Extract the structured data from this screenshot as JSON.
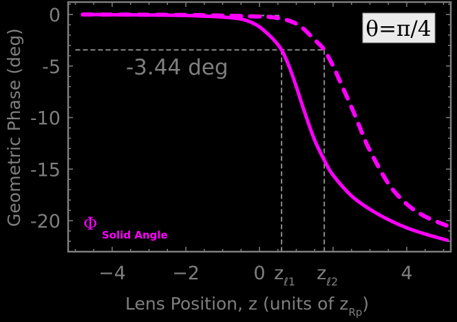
{
  "chart_data": {
    "type": "line",
    "title": "",
    "xlabel": "Lens Position, z (units of z_Rp)",
    "xlabel_main": "Lens Position, z (units of z",
    "xlabel_sub": "Rp",
    "xlabel_close": ")",
    "ylabel": "Geometric Phase (deg)",
    "xlim": [
      -5.2,
      5.2
    ],
    "ylim": [
      -23,
      1.2
    ],
    "grid": false,
    "x_ticks": [
      {
        "value": -4,
        "label": "−4"
      },
      {
        "value": -2,
        "label": "−2"
      },
      {
        "value": 0,
        "label": "0"
      },
      {
        "value": 4,
        "label": "4"
      }
    ],
    "x_special_ticks": [
      {
        "value": 0.6,
        "label_main": "z",
        "label_sub": "ℓ1"
      },
      {
        "value": 1.76,
        "label_main": "z",
        "label_sub": "ℓ2"
      }
    ],
    "y_ticks": [
      {
        "value": 0,
        "label": "0"
      },
      {
        "value": -5,
        "label": "-5"
      },
      {
        "value": -10,
        "label": "-10"
      },
      {
        "value": -15,
        "label": "-15"
      },
      {
        "value": -20,
        "label": "-20"
      }
    ],
    "series": [
      {
        "name": "Solid Angle (solid)",
        "style": "solid",
        "color": "#ff00ff",
        "x": [
          -4.8,
          -3,
          -2,
          -1,
          -0.5,
          -0.2,
          0,
          0.2,
          0.4,
          0.6,
          0.8,
          1.0,
          1.2,
          1.5,
          1.8,
          2.0,
          2.5,
          3.0,
          3.5,
          4.0,
          4.5,
          5.1
        ],
        "y": [
          0,
          -0.05,
          -0.1,
          -0.25,
          -0.45,
          -0.8,
          -1.2,
          -1.8,
          -2.5,
          -3.44,
          -5.0,
          -7.0,
          -9.2,
          -12.2,
          -14.4,
          -15.6,
          -17.6,
          -18.9,
          -19.9,
          -20.7,
          -21.3,
          -21.9
        ]
      },
      {
        "name": "Solid Angle (dashed)",
        "style": "dashed",
        "color": "#ff00ff",
        "x": [
          -4.8,
          -2,
          0,
          0.5,
          0.8,
          1.0,
          1.2,
          1.4,
          1.6,
          1.76,
          2.0,
          2.2,
          2.5,
          2.8,
          3.0,
          3.5,
          4.0,
          4.5,
          5.1
        ],
        "y": [
          0,
          -0.05,
          -0.2,
          -0.35,
          -0.6,
          -0.9,
          -1.4,
          -2.1,
          -2.8,
          -3.44,
          -5.0,
          -6.6,
          -9.0,
          -11.6,
          -13.2,
          -16.4,
          -18.4,
          -19.6,
          -20.5
        ]
      }
    ],
    "reference_lines": [
      {
        "orientation": "horizontal",
        "y": -3.44,
        "x_from": -5.0,
        "x_to": 1.76,
        "style": "dashed",
        "color": "#8c8c8c"
      },
      {
        "orientation": "vertical",
        "x": 0.6,
        "y_from": -3.44,
        "y_to": -23,
        "style": "dashed",
        "color": "#8c8c8c"
      },
      {
        "orientation": "vertical",
        "x": 1.76,
        "y_from": -3.44,
        "y_to": -23,
        "style": "dashed",
        "color": "#8c8c8c"
      },
      {
        "orientation": "horizontal",
        "y": -0.1,
        "x_from": 0.0,
        "x_to": 0.6,
        "style": "dashed",
        "color": "#8c8c8c"
      }
    ],
    "annotations": [
      {
        "text": "-3.44 deg",
        "x": -3.0,
        "y": -5.0
      },
      {
        "text": "θ=π/4",
        "position": "top-right",
        "boxed": true
      }
    ],
    "legend": {
      "symbol": "Φ",
      "subscript": "Solid Angle",
      "position": "bottom-left"
    }
  },
  "labels": {
    "annotation_value": "-3.44 deg",
    "theta_box": "θ=π/4",
    "legend_symbol": "Φ",
    "legend_subscript": "Solid Angle"
  },
  "colors": {
    "background": "#000000",
    "axis": "#7f7f7f",
    "curve": "#ff00ff",
    "reference": "#8c8c8c",
    "theta_box_bg": "#ebebeb"
  }
}
